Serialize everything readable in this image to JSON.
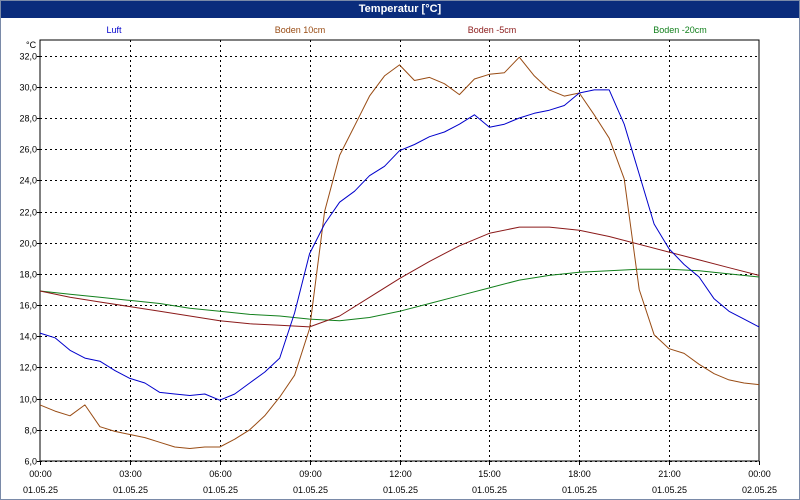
{
  "window": {
    "title": "Temperatur [°C]"
  },
  "chart_data": {
    "type": "line",
    "title": "Temperatur [°C]",
    "ylabel": "°C",
    "xlabel": "",
    "ylim": [
      6,
      33
    ],
    "grid": true,
    "legend_placement": "top",
    "y_ticks": [
      "6,0",
      "8,0",
      "10,0",
      "12,0",
      "14,0",
      "16,0",
      "18,0",
      "20,0",
      "22,0",
      "24,0",
      "26,0",
      "28,0",
      "30,0",
      "32,0"
    ],
    "x_ticks": [
      {
        "time": "00:00",
        "date": "01.05.25"
      },
      {
        "time": "03:00",
        "date": "01.05.25"
      },
      {
        "time": "06:00",
        "date": "01.05.25"
      },
      {
        "time": "09:00",
        "date": "01.05.25"
      },
      {
        "time": "12:00",
        "date": "01.05.25"
      },
      {
        "time": "15:00",
        "date": "01.05.25"
      },
      {
        "time": "18:00",
        "date": "01.05.25"
      },
      {
        "time": "21:00",
        "date": "01.05.25"
      },
      {
        "time": "00:00",
        "date": "02.05.25"
      }
    ],
    "series": [
      {
        "name": "Luft",
        "color": "#0000cc",
        "x": [
          "01.05.25 00:00",
          "01.05.25 00:30",
          "01.05.25 01:00",
          "01.05.25 01:30",
          "01.05.25 02:00",
          "01.05.25 02:30",
          "01.05.25 03:00",
          "01.05.25 03:30",
          "01.05.25 04:00",
          "01.05.25 04:30",
          "01.05.25 05:00",
          "01.05.25 05:30",
          "01.05.25 06:00",
          "01.05.25 06:30",
          "01.05.25 07:00",
          "01.05.25 07:30",
          "01.05.25 08:00",
          "01.05.25 08:30",
          "01.05.25 09:00",
          "01.05.25 09:30",
          "01.05.25 10:00",
          "01.05.25 10:30",
          "01.05.25 11:00",
          "01.05.25 11:30",
          "01.05.25 12:00",
          "01.05.25 12:30",
          "01.05.25 13:00",
          "01.05.25 13:30",
          "01.05.25 14:00",
          "01.05.25 14:30",
          "01.05.25 15:00",
          "01.05.25 15:30",
          "01.05.25 16:00",
          "01.05.25 16:30",
          "01.05.25 17:00",
          "01.05.25 17:30",
          "01.05.25 18:00",
          "01.05.25 18:30",
          "01.05.25 19:00",
          "01.05.25 19:30",
          "01.05.25 20:00",
          "01.05.25 20:30",
          "01.05.25 21:00",
          "01.05.25 21:30",
          "01.05.25 22:00",
          "01.05.25 22:30",
          "01.05.25 23:00",
          "01.05.25 23:30",
          "02.05.25 00:00"
        ],
        "values": [
          14.2,
          13.9,
          13.1,
          12.6,
          12.4,
          11.8,
          11.3,
          11.0,
          10.4,
          10.3,
          10.2,
          10.3,
          9.9,
          10.3,
          11.0,
          11.7,
          12.6,
          15.5,
          19.3,
          21.2,
          22.6,
          23.3,
          24.3,
          24.9,
          25.9,
          26.3,
          26.8,
          27.1,
          27.6,
          28.2,
          27.4,
          27.6,
          28.0,
          28.3,
          28.5,
          28.8,
          29.6,
          29.8,
          29.8,
          27.6,
          24.4,
          21.2,
          19.6,
          18.6,
          17.8,
          16.4,
          15.6,
          15.1,
          14.6
        ]
      },
      {
        "name": "Boden 10cm",
        "color": "#994c14",
        "x": [
          "01.05.25 00:00",
          "01.05.25 00:30",
          "01.05.25 01:00",
          "01.05.25 01:30",
          "01.05.25 02:00",
          "01.05.25 02:30",
          "01.05.25 03:00",
          "01.05.25 03:30",
          "01.05.25 04:00",
          "01.05.25 04:30",
          "01.05.25 05:00",
          "01.05.25 05:30",
          "01.05.25 06:00",
          "01.05.25 06:30",
          "01.05.25 07:00",
          "01.05.25 07:30",
          "01.05.25 08:00",
          "01.05.25 08:30",
          "01.05.25 09:00",
          "01.05.25 09:30",
          "01.05.25 10:00",
          "01.05.25 10:30",
          "01.05.25 11:00",
          "01.05.25 11:30",
          "01.05.25 12:00",
          "01.05.25 12:30",
          "01.05.25 13:00",
          "01.05.25 13:30",
          "01.05.25 14:00",
          "01.05.25 14:30",
          "01.05.25 15:00",
          "01.05.25 15:30",
          "01.05.25 16:00",
          "01.05.25 16:30",
          "01.05.25 17:00",
          "01.05.25 17:30",
          "01.05.25 18:00",
          "01.05.25 18:30",
          "01.05.25 19:00",
          "01.05.25 19:30",
          "01.05.25 20:00",
          "01.05.25 20:30",
          "01.05.25 21:00",
          "01.05.25 21:30",
          "01.05.25 22:00",
          "01.05.25 22:30",
          "01.05.25 23:00",
          "01.05.25 23:30",
          "02.05.25 00:00"
        ],
        "values": [
          9.6,
          9.2,
          8.9,
          9.6,
          8.2,
          7.9,
          7.7,
          7.5,
          7.2,
          6.9,
          6.8,
          6.9,
          6.9,
          7.4,
          8.0,
          8.9,
          10.1,
          11.5,
          14.5,
          22.0,
          25.6,
          27.5,
          29.4,
          30.7,
          31.4,
          30.4,
          30.6,
          30.2,
          29.5,
          30.5,
          30.8,
          30.9,
          31.9,
          30.7,
          29.8,
          29.4,
          29.6,
          28.2,
          26.7,
          24.1,
          17.0,
          14.1,
          13.2,
          12.9,
          12.2,
          11.6,
          11.2,
          11.0,
          10.9
        ]
      },
      {
        "name": "Boden -5cm",
        "color": "#8b1a1a",
        "x": [
          "01.05.25 00:00",
          "01.05.25 01:00",
          "01.05.25 02:00",
          "01.05.25 03:00",
          "01.05.25 04:00",
          "01.05.25 05:00",
          "01.05.25 06:00",
          "01.05.25 07:00",
          "01.05.25 08:00",
          "01.05.25 09:00",
          "01.05.25 10:00",
          "01.05.25 11:00",
          "01.05.25 12:00",
          "01.05.25 13:00",
          "01.05.25 14:00",
          "01.05.25 15:00",
          "01.05.25 16:00",
          "01.05.25 17:00",
          "01.05.25 18:00",
          "01.05.25 19:00",
          "01.05.25 20:00",
          "01.05.25 21:00",
          "01.05.25 22:00",
          "01.05.25 23:00",
          "02.05.25 00:00"
        ],
        "values": [
          16.9,
          16.5,
          16.2,
          15.9,
          15.6,
          15.3,
          15.0,
          14.8,
          14.7,
          14.6,
          15.3,
          16.5,
          17.7,
          18.8,
          19.8,
          20.6,
          21.0,
          21.0,
          20.8,
          20.4,
          19.9,
          19.4,
          18.9,
          18.4,
          17.9
        ]
      },
      {
        "name": "Boden -20cm",
        "color": "#12801c",
        "x": [
          "01.05.25 00:00",
          "01.05.25 01:00",
          "01.05.25 02:00",
          "01.05.25 03:00",
          "01.05.25 04:00",
          "01.05.25 05:00",
          "01.05.25 06:00",
          "01.05.25 07:00",
          "01.05.25 08:00",
          "01.05.25 09:00",
          "01.05.25 10:00",
          "01.05.25 11:00",
          "01.05.25 12:00",
          "01.05.25 13:00",
          "01.05.25 14:00",
          "01.05.25 15:00",
          "01.05.25 16:00",
          "01.05.25 17:00",
          "01.05.25 18:00",
          "01.05.25 19:00",
          "01.05.25 20:00",
          "01.05.25 21:00",
          "01.05.25 22:00",
          "01.05.25 23:00",
          "02.05.25 00:00"
        ],
        "values": [
          16.9,
          16.7,
          16.5,
          16.3,
          16.1,
          15.8,
          15.6,
          15.4,
          15.3,
          15.1,
          15.0,
          15.2,
          15.6,
          16.1,
          16.6,
          17.1,
          17.6,
          17.9,
          18.1,
          18.2,
          18.3,
          18.3,
          18.2,
          18.0,
          17.8
        ]
      }
    ]
  }
}
